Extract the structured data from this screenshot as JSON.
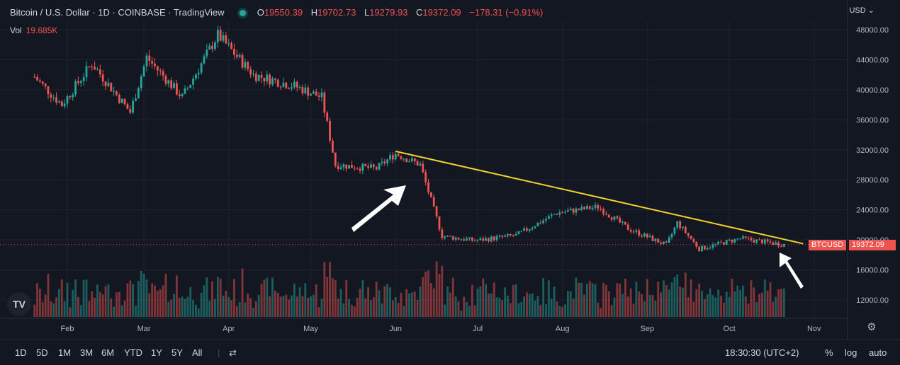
{
  "header": {
    "symbol_title": "Bitcoin / U.S. Dollar · 1D · COINBASE · TradingView",
    "ohlc": [
      {
        "k": "O",
        "v": "19550.39"
      },
      {
        "k": "H",
        "v": "19702.73"
      },
      {
        "k": "L",
        "v": "19279.93"
      },
      {
        "k": "C",
        "v": "19372.09"
      }
    ],
    "change": "−178.31 (−0.91%)",
    "vol_label": "Vol",
    "vol_value": "19.685K",
    "currency": "USD"
  },
  "price_tag": {
    "symbol": "BTCUSD",
    "value": "19372.09"
  },
  "toolbar": {
    "timeframes": [
      "1D",
      "5D",
      "1M",
      "3M",
      "6M",
      "YTD",
      "1Y",
      "5Y",
      "All"
    ],
    "clock": "18:30:30 (UTC+2)",
    "percent": "%",
    "log": "log",
    "auto": "auto"
  },
  "colors": {
    "up": "#26a69a",
    "down": "#ef5350",
    "trendline": "#f2d22e",
    "background": "#131722"
  },
  "chart_data": {
    "type": "candlestick",
    "y_ticks": [
      "48000.00",
      "44000.00",
      "40000.00",
      "36000.00",
      "32000.00",
      "28000.00",
      "24000.00",
      "20000.00",
      "16000.00",
      "12000.00"
    ],
    "ylim": [
      10500,
      49500
    ],
    "x_months": [
      "Feb",
      "Mar",
      "Apr",
      "May",
      "Jun",
      "Jul",
      "Aug",
      "Sep",
      "Oct",
      "Nov"
    ],
    "series_close_keypoints": [
      {
        "date": "2022-01-20",
        "close": 41700
      },
      {
        "date": "2022-01-30",
        "close": 38000
      },
      {
        "date": "2022-02-10",
        "close": 43500
      },
      {
        "date": "2022-02-24",
        "close": 37000
      },
      {
        "date": "2022-03-02",
        "close": 44300
      },
      {
        "date": "2022-03-15",
        "close": 39000
      },
      {
        "date": "2022-03-28",
        "close": 47300
      },
      {
        "date": "2022-04-10",
        "close": 42000
      },
      {
        "date": "2022-04-25",
        "close": 40500
      },
      {
        "date": "2022-05-05",
        "close": 39000
      },
      {
        "date": "2022-05-10",
        "close": 30000
      },
      {
        "date": "2022-05-25",
        "close": 29500
      },
      {
        "date": "2022-06-01",
        "close": 31500
      },
      {
        "date": "2022-06-10",
        "close": 30000
      },
      {
        "date": "2022-06-18",
        "close": 20500
      },
      {
        "date": "2022-06-30",
        "close": 19900
      },
      {
        "date": "2022-07-15",
        "close": 20600
      },
      {
        "date": "2022-07-30",
        "close": 23600
      },
      {
        "date": "2022-08-14",
        "close": 24400
      },
      {
        "date": "2022-08-25",
        "close": 21500
      },
      {
        "date": "2022-09-08",
        "close": 19300
      },
      {
        "date": "2022-09-12",
        "close": 22300
      },
      {
        "date": "2022-09-20",
        "close": 18800
      },
      {
        "date": "2022-10-05",
        "close": 20200
      },
      {
        "date": "2022-10-21",
        "close": 19372
      }
    ],
    "trendline": {
      "from": {
        "date": "2022-06-01",
        "price": 31800
      },
      "to": {
        "date": "2022-10-28",
        "price": 19500
      }
    },
    "last_price": 19372.09,
    "volume_axis": "hidden"
  }
}
